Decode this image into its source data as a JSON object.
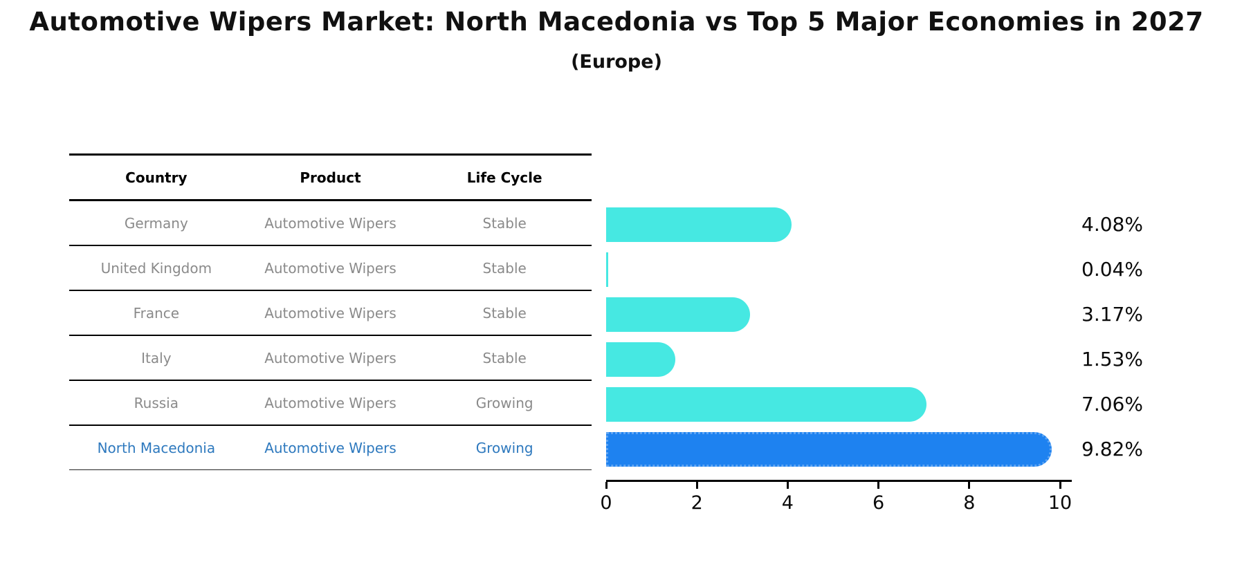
{
  "title": "Automotive Wipers Market: North Macedonia vs Top 5 Major Economies in 2027",
  "subtitle": "(Europe)",
  "table": {
    "headers": [
      "Country",
      "Product",
      "Life Cycle"
    ],
    "rows": [
      {
        "country": "Germany",
        "product": "Automotive Wipers",
        "life_cycle": "Stable",
        "value": 4.08,
        "value_label": "4.08%",
        "highlight": false
      },
      {
        "country": "United Kingdom",
        "product": "Automotive Wipers",
        "life_cycle": "Stable",
        "value": 0.04,
        "value_label": "0.04%",
        "highlight": false
      },
      {
        "country": "France",
        "product": "Automotive Wipers",
        "life_cycle": "Stable",
        "value": 3.17,
        "value_label": "3.17%",
        "highlight": false
      },
      {
        "country": "Italy",
        "product": "Automotive Wipers",
        "life_cycle": "Stable",
        "value": 1.53,
        "value_label": "1.53%",
        "highlight": false
      },
      {
        "country": "Russia",
        "product": "Automotive Wipers",
        "life_cycle": "Growing",
        "value": 7.06,
        "value_label": "7.06%",
        "highlight": false
      },
      {
        "country": "North Macedonia",
        "product": "Automotive Wipers",
        "life_cycle": "Growing",
        "value": 9.82,
        "value_label": "9.82%",
        "highlight": true
      }
    ]
  },
  "chart_data": {
    "type": "bar",
    "orientation": "horizontal",
    "title": "Automotive Wipers Market: North Macedonia vs Top 5 Major Economies in 2027 (Europe)",
    "categories": [
      "Germany",
      "United Kingdom",
      "France",
      "Italy",
      "Russia",
      "North Macedonia"
    ],
    "values": [
      4.08,
      0.04,
      3.17,
      1.53,
      7.06,
      9.82
    ],
    "data_labels": [
      "4.08%",
      "0.04%",
      "3.17%",
      "1.53%",
      "7.06%",
      "9.82%"
    ],
    "xlabel": "",
    "ylabel": "",
    "xlim": [
      0,
      10.3
    ],
    "xticks": [
      0,
      2,
      4,
      6,
      8,
      10
    ],
    "grid": false,
    "legend": false,
    "bar_color": "#46e8e2",
    "highlight_color": "#1e82f0",
    "highlight_index": 5,
    "highlight_edge_style": "dotted"
  },
  "colors": {
    "bar_cyan": "#46e8e2",
    "bar_blue": "#1e82f0",
    "highlight_text_blue": "#2e79be",
    "table_text_gray": "#8a8a8a",
    "text_black": "#0a0a0a"
  }
}
